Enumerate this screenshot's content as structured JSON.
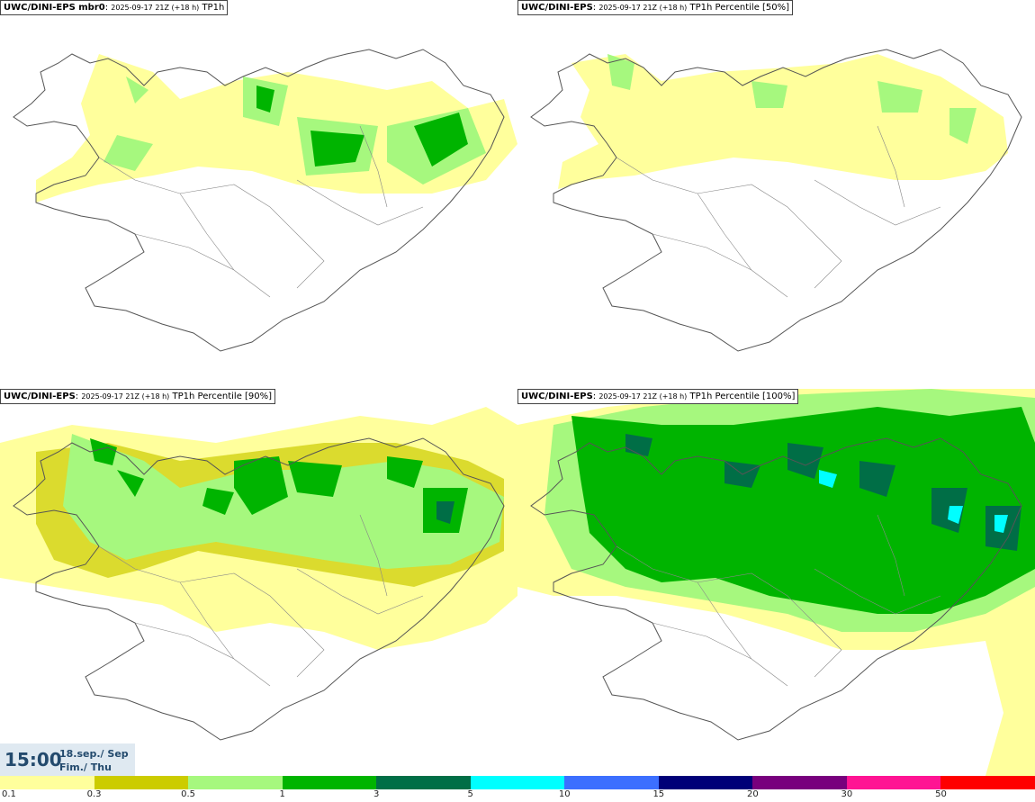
{
  "panels": [
    {
      "model": "UWC/DINI-EPS mbr0",
      "run": "2025-09-17 21Z (+18 h)",
      "product": "TP1h"
    },
    {
      "model": "UWC/DINI-EPS",
      "run": "2025-09-17 21Z (+18 h)",
      "product": "TP1h Percentile [50%]"
    },
    {
      "model": "UWC/DINI-EPS",
      "run": "2025-09-17 21Z (+18 h)",
      "product": "TP1h Percentile [90%]"
    },
    {
      "model": "UWC/DINI-EPS",
      "run": "2025-09-17 21Z (+18 h)",
      "product": "TP1h Percentile [100%]"
    }
  ],
  "valid_time": {
    "time": "15:00",
    "date_line": "18.sep./ Sep",
    "day_line": "Fim./ Thu"
  },
  "legend": {
    "colors": [
      "#ffff9c",
      "#cccc00",
      "#a6f87e",
      "#00b400",
      "#006e46",
      "#00ffff",
      "#3c6fff",
      "#000078",
      "#78007d",
      "#ff1493",
      "#ff0000"
    ],
    "labels": [
      "0.1",
      "0.3",
      "0.5",
      "1",
      "3",
      "5",
      "10",
      "15",
      "20",
      "30",
      "50"
    ]
  }
}
